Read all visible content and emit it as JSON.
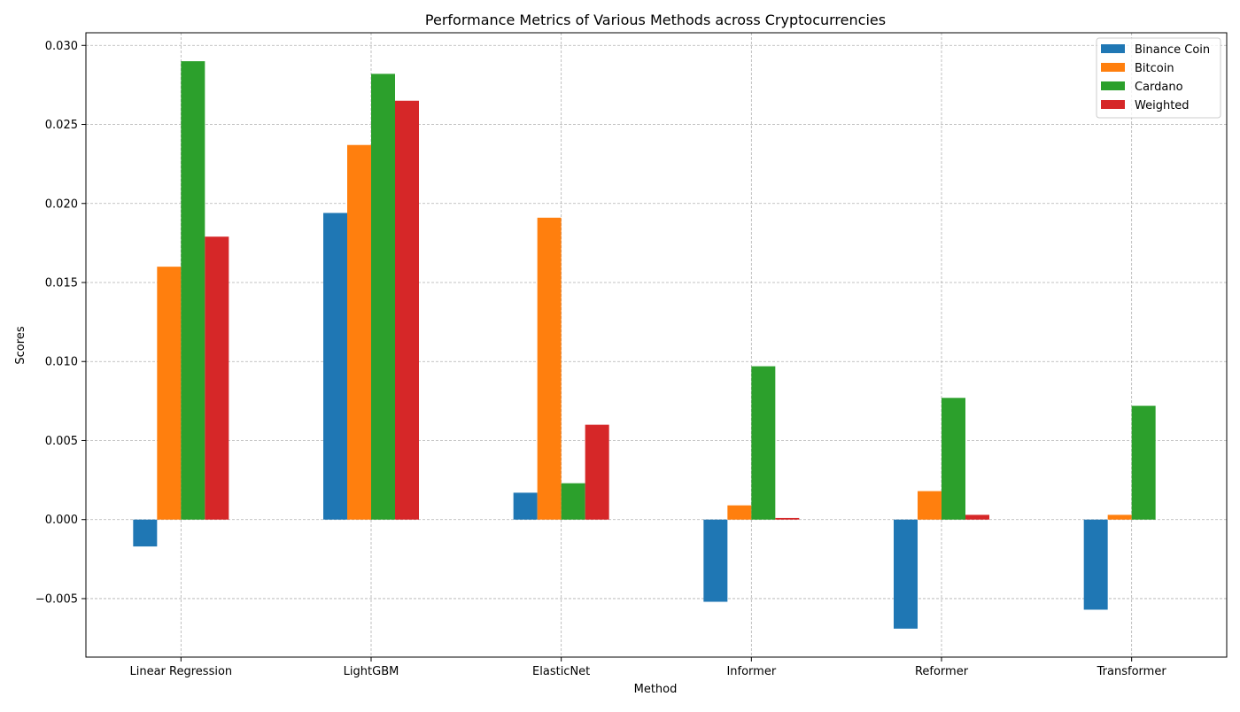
{
  "chart_data": {
    "type": "bar",
    "title": "Performance Metrics of Various Methods across Cryptocurrencies",
    "xlabel": "Method",
    "ylabel": "Scores",
    "categories": [
      "Linear Regression",
      "LightGBM",
      "ElasticNet",
      "Informer",
      "Reformer",
      "Transformer"
    ],
    "series": [
      {
        "name": "Binance Coin",
        "color": "#1f77b4",
        "values": [
          -0.0017,
          0.0194,
          0.0017,
          -0.0052,
          -0.0069,
          -0.0057
        ]
      },
      {
        "name": "Bitcoin",
        "color": "#ff7f0e",
        "values": [
          0.016,
          0.0237,
          0.0191,
          0.0009,
          0.0018,
          0.0003
        ]
      },
      {
        "name": "Cardano",
        "color": "#2ca02c",
        "values": [
          0.029,
          0.0282,
          0.0023,
          0.0097,
          0.0077,
          0.0072
        ]
      },
      {
        "name": "Weighted",
        "color": "#d62728",
        "values": [
          0.0179,
          0.0265,
          0.006,
          0.0001,
          0.0003,
          0.0
        ]
      }
    ],
    "ylim": [
      -0.0087,
      0.0308
    ],
    "yticks": [
      -0.005,
      0.0,
      0.005,
      0.01,
      0.015,
      0.02,
      0.025,
      0.03
    ],
    "ytick_labels": [
      "−0.005",
      "0.000",
      "0.005",
      "0.010",
      "0.015",
      "0.020",
      "0.025",
      "0.030"
    ],
    "grid": true,
    "legend_position": "top-right"
  }
}
